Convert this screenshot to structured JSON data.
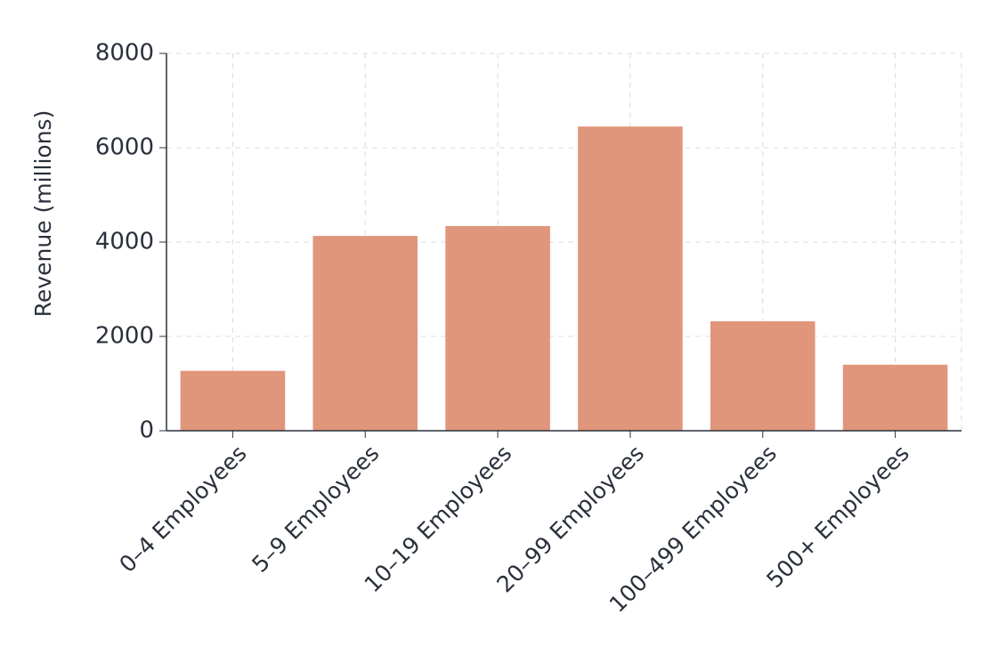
{
  "chart_data": {
    "type": "bar",
    "y_label": "Revenue (millions)",
    "categories": [
      "0–4 Employees",
      "5–9 Employees",
      "10–19 Employees",
      "20–99 Employees",
      "100–499 Employees",
      "500+ Employees"
    ],
    "values": [
      1270,
      4130,
      4340,
      6450,
      2320,
      1400
    ],
    "color": "#e0967a",
    "ylim": [
      0,
      8000
    ],
    "yticks": [
      0,
      2000,
      4000,
      6000,
      8000
    ],
    "grid": true
  }
}
